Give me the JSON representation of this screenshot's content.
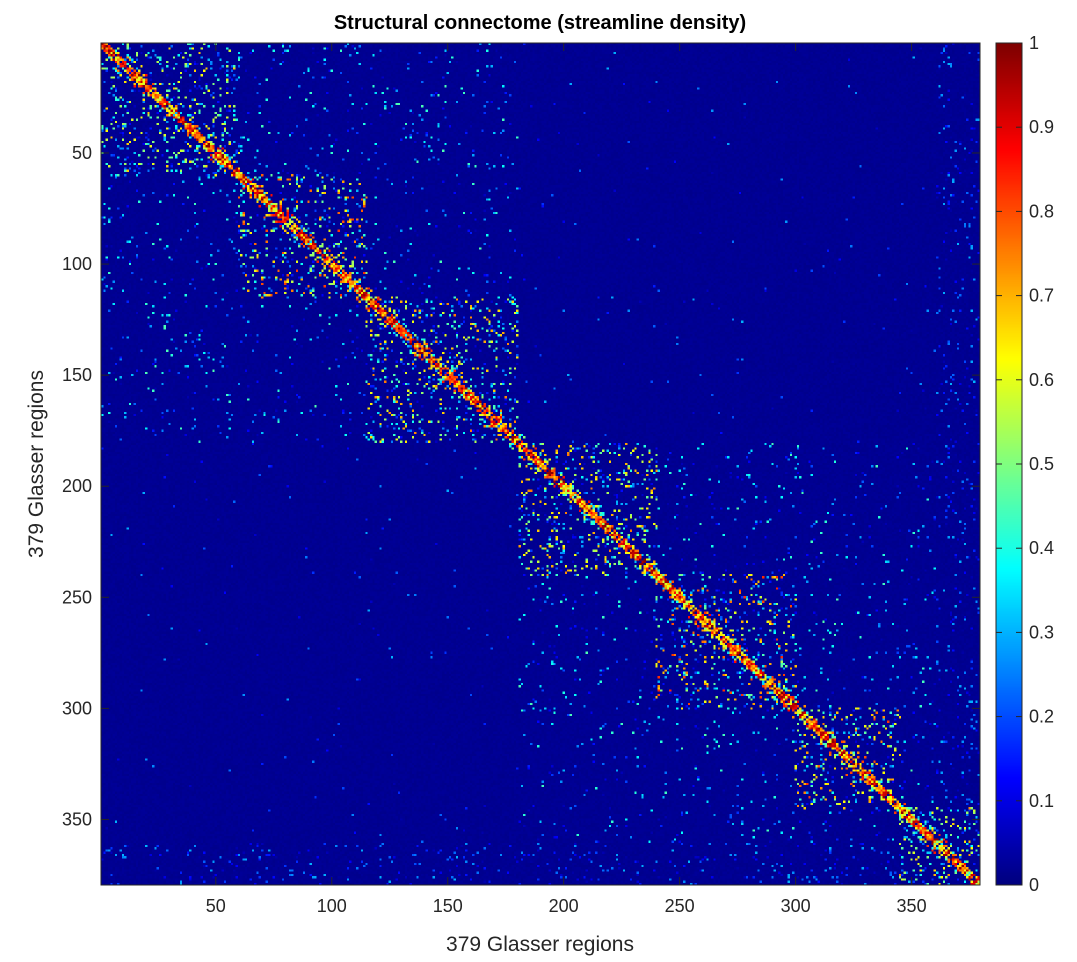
{
  "chart_data": {
    "type": "heatmap",
    "title": "Structural connectome (streamline density)",
    "xlabel": "379 Glasser regions",
    "ylabel": "379 Glasser regions",
    "n_regions": 379,
    "x_range": [
      1,
      379
    ],
    "y_range": [
      1,
      379
    ],
    "y_direction": "reversed",
    "x_ticks": [
      50,
      100,
      150,
      200,
      250,
      300,
      350
    ],
    "y_ticks": [
      50,
      100,
      150,
      200,
      250,
      300,
      350
    ],
    "colormap": "jet",
    "color_range": [
      0,
      1
    ],
    "colorbar_ticks": [
      0,
      0.1,
      0.2,
      0.3,
      0.4,
      0.5,
      0.6,
      0.7,
      0.8,
      0.9,
      1
    ],
    "colorbar_position": "right",
    "grid": false,
    "background_value": 0,
    "structure": {
      "hemisphere_blocks": [
        [
          1,
          180
        ],
        [
          181,
          360
        ]
      ],
      "subcortical_range": [
        361,
        379
      ],
      "dense_subblocks": [
        {
          "range": [
            1,
            60
          ],
          "level": 0.18
        },
        {
          "range": [
            60,
            115
          ],
          "level": 0.22
        },
        {
          "range": [
            115,
            180
          ],
          "level": 0.2
        },
        {
          "range": [
            181,
            240
          ],
          "level": 0.2
        },
        {
          "range": [
            240,
            300
          ],
          "level": 0.22
        },
        {
          "range": [
            300,
            345
          ],
          "level": 0.22
        },
        {
          "range": [
            345,
            379
          ],
          "level": 0.2
        }
      ],
      "diagonal_peak": 1.0
    }
  }
}
